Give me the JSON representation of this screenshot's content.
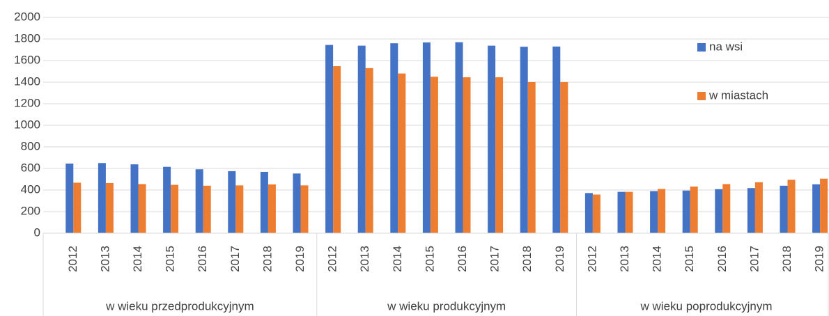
{
  "chart_data": {
    "type": "bar",
    "categories": [
      "2012",
      "2013",
      "2014",
      "2015",
      "2016",
      "2017",
      "2018",
      "2019",
      "2012",
      "2013",
      "2014",
      "2015",
      "2016",
      "2017",
      "2018",
      "2019",
      "2012",
      "2013",
      "2014",
      "2015",
      "2016",
      "2017",
      "2018",
      "2019"
    ],
    "category_groups": [
      "w wieku przedprodukcyjnym",
      "w wieku produkcyjnym",
      "w wieku poprodukcyjnym"
    ],
    "series": [
      {
        "name": "na wsi",
        "color": "#4472c4",
        "values": [
          645,
          650,
          638,
          615,
          592,
          575,
          568,
          553,
          1745,
          1738,
          1760,
          1768,
          1770,
          1738,
          1728,
          1730,
          372,
          383,
          390,
          395,
          408,
          418,
          440,
          453
        ]
      },
      {
        "name": "w miastach",
        "color": "#ed7d31",
        "values": [
          468,
          465,
          455,
          448,
          440,
          443,
          452,
          443,
          1548,
          1530,
          1480,
          1450,
          1445,
          1445,
          1400,
          1400,
          358,
          383,
          410,
          432,
          455,
          472,
          495,
          505
        ]
      }
    ],
    "ylim": [
      0,
      2000
    ],
    "yticks": [
      0,
      200,
      400,
      600,
      800,
      1000,
      1200,
      1400,
      1600,
      1800,
      2000
    ],
    "grid": true,
    "legend": "top-right"
  }
}
